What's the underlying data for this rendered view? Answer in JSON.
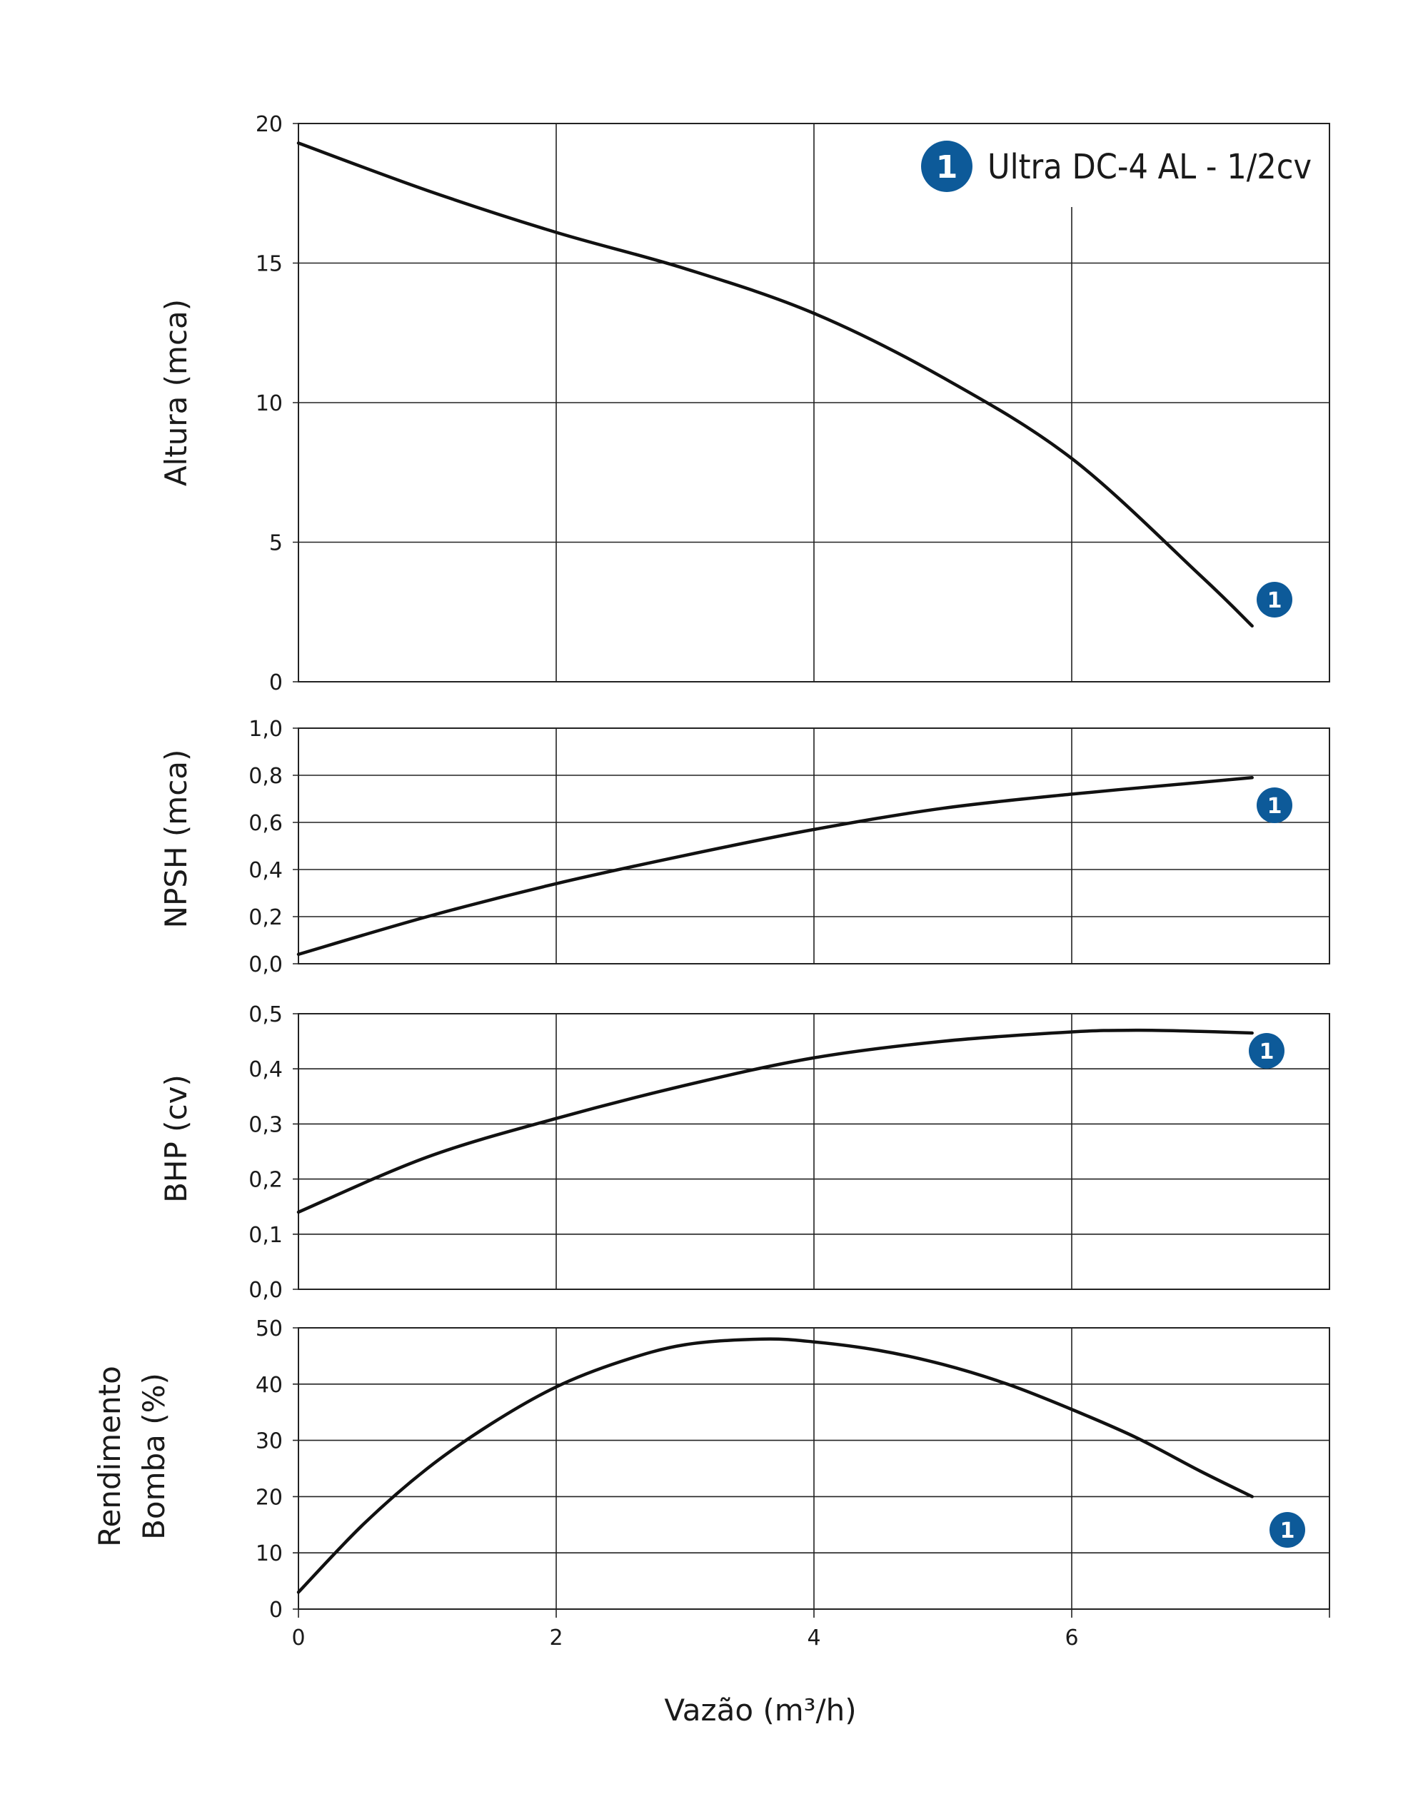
{
  "legend": {
    "marker": "1",
    "label": "Ultra DC-4 AL - 1/2cv"
  },
  "x_axis": {
    "label": "Vazão (m³/h)",
    "ticks": [
      "0",
      "2",
      "4",
      "6"
    ]
  },
  "colors": {
    "badge": "#0d5a99",
    "curve": "#111111",
    "grid": "#222222"
  },
  "chart_data": [
    {
      "type": "line",
      "ylabel": "Altura (mca)",
      "ylabel_lines": [
        "Altura (mca)"
      ],
      "xlim": [
        0,
        8
      ],
      "ylim": [
        0,
        20
      ],
      "y_ticks": [
        "0",
        "5",
        "10",
        "15",
        "20"
      ],
      "series": [
        {
          "marker": "1",
          "x": [
            0,
            1,
            2,
            3,
            4,
            5,
            6,
            7,
            7.4
          ],
          "y": [
            19.3,
            17.6,
            16.1,
            14.8,
            13.2,
            10.9,
            8.0,
            3.8,
            2.0
          ]
        }
      ],
      "grid": true
    },
    {
      "type": "line",
      "ylabel": "NPSH (mca)",
      "ylabel_lines": [
        "NPSH (mca)"
      ],
      "xlim": [
        0,
        8
      ],
      "ylim": [
        0,
        1
      ],
      "y_ticks": [
        "0,0",
        "0,2",
        "0,4",
        "0,6",
        "0,8",
        "1,0"
      ],
      "series": [
        {
          "marker": "1",
          "x": [
            0,
            1,
            2,
            3,
            4,
            5,
            6,
            7,
            7.4
          ],
          "y": [
            0.04,
            0.2,
            0.34,
            0.46,
            0.57,
            0.66,
            0.72,
            0.77,
            0.79
          ]
        }
      ],
      "grid": true
    },
    {
      "type": "line",
      "ylabel": "BHP (cv)",
      "ylabel_lines": [
        "BHP (cv)"
      ],
      "xlim": [
        0,
        8
      ],
      "ylim": [
        0,
        0.5
      ],
      "y_ticks": [
        "0,0",
        "0,1",
        "0,2",
        "0,3",
        "0,4",
        "0,5"
      ],
      "series": [
        {
          "marker": "1",
          "x": [
            0,
            1,
            2,
            3,
            4,
            5,
            6,
            6.5,
            7,
            7.4
          ],
          "y": [
            0.14,
            0.24,
            0.31,
            0.37,
            0.42,
            0.45,
            0.467,
            0.47,
            0.468,
            0.465
          ]
        }
      ],
      "grid": true
    },
    {
      "type": "line",
      "ylabel": "Rendimento Bomba (%)",
      "ylabel_lines": [
        "Rendimento",
        "Bomba (%)"
      ],
      "xlim": [
        0,
        8
      ],
      "ylim": [
        0,
        50
      ],
      "y_ticks": [
        "0",
        "10",
        "20",
        "30",
        "40",
        "50"
      ],
      "series": [
        {
          "marker": "1",
          "x": [
            0,
            0.5,
            1,
            1.5,
            2,
            2.5,
            3,
            3.6,
            4,
            4.5,
            5,
            5.5,
            6,
            6.5,
            7,
            7.4
          ],
          "y": [
            3,
            15,
            25,
            33,
            39.5,
            44,
            47,
            48,
            47.5,
            46,
            43.5,
            40,
            35.5,
            30.5,
            24.5,
            20
          ]
        }
      ],
      "grid": true
    }
  ]
}
